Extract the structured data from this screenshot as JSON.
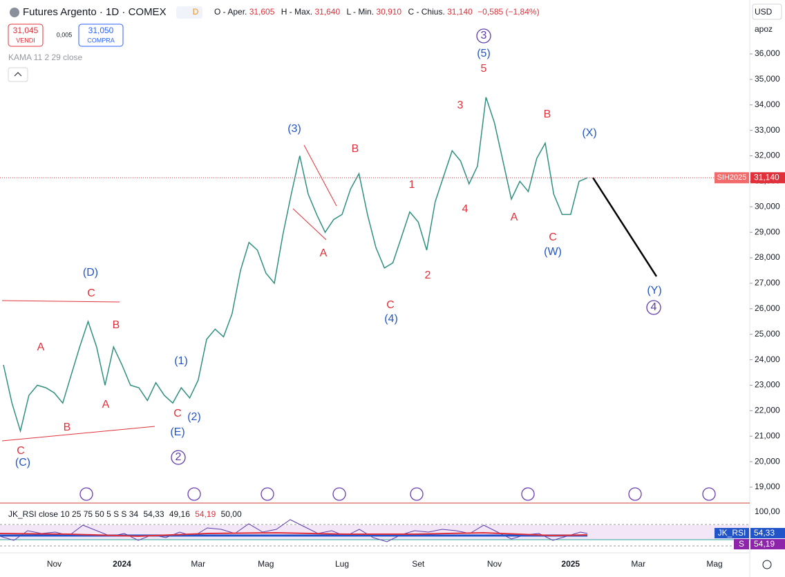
{
  "header": {
    "title": "Futures Argento · 1D · COMEX",
    "badge": "D",
    "open_label": "O - Aper.",
    "open": "31,605",
    "high_label": "H - Max.",
    "high": "31,640",
    "low_label": "L - Min.",
    "low": "30,910",
    "close_label": "C - Chius.",
    "close": "31,140",
    "change": "−0,585 (−1,84%)"
  },
  "trade": {
    "sell_price": "31,045",
    "sell_label": "VENDI",
    "spread": "0,005",
    "buy_price": "31,050",
    "buy_label": "COMPRA"
  },
  "indicator": "KAMA 11 2 29 close",
  "currency": "USD",
  "scale_mode": "apoz",
  "chart_data": {
    "type": "line",
    "color": "#2f8f7f",
    "categories": [
      null,
      null,
      null,
      null,
      null,
      null,
      "Nov",
      null,
      null,
      null,
      null,
      null,
      null,
      null,
      "2024",
      null,
      null,
      null,
      null,
      null,
      null,
      null,
      null,
      "Mar",
      null,
      null,
      null,
      null,
      null,
      null,
      null,
      "Mag",
      null,
      null,
      null,
      null,
      null,
      null,
      null,
      null,
      "Lug",
      null,
      null,
      null,
      null,
      null,
      null,
      null,
      null,
      "Set",
      null,
      null,
      null,
      null,
      null,
      null,
      null,
      null,
      "Nov",
      null,
      null,
      null,
      null,
      null,
      null,
      null,
      null,
      "2025",
      null,
      null,
      null,
      null,
      null,
      null,
      null,
      "Mar",
      null,
      null,
      null,
      null,
      null,
      null,
      null,
      null,
      "Mag",
      null,
      null,
      null,
      null
    ],
    "values": [
      23800,
      22300,
      21200,
      22600,
      23000,
      22900,
      22700,
      22300,
      23400,
      24500,
      25500,
      24500,
      23000,
      24500,
      23800,
      23000,
      22900,
      22400,
      23100,
      22600,
      22300,
      22900,
      22500,
      23200,
      24800,
      25200,
      24900,
      25800,
      27500,
      28600,
      28300,
      27400,
      27000,
      28900,
      30500,
      32000,
      30500,
      29700,
      29000,
      29500,
      29700,
      30700,
      31300,
      29700,
      28400,
      27600,
      27800,
      28800,
      29800,
      29400,
      28300,
      30200,
      31200,
      32200,
      31800,
      30900,
      31600,
      34300,
      33300,
      31800,
      30300,
      31000,
      30600,
      31900,
      32500,
      30500,
      29700,
      29700,
      31000,
      31140,
      null,
      null,
      null,
      null,
      null,
      null,
      null,
      null,
      null,
      null,
      null,
      null,
      null,
      null,
      null,
      null,
      null,
      null,
      null
    ],
    "ylim": [
      18376,
      38115
    ],
    "yticks": [
      {
        "value": 19000,
        "label": "19,000"
      },
      {
        "value": 20000,
        "label": "20,000"
      },
      {
        "value": 21000,
        "label": "21,000"
      },
      {
        "value": 22000,
        "label": "22,000"
      },
      {
        "value": 23000,
        "label": "23,000"
      },
      {
        "value": 24000,
        "label": "24,000"
      },
      {
        "value": 25000,
        "label": "25,000"
      },
      {
        "value": 26000,
        "label": "26,000"
      },
      {
        "value": 27000,
        "label": "27,000"
      },
      {
        "value": 28000,
        "label": "28,000"
      },
      {
        "value": 29000,
        "label": "29,000"
      },
      {
        "value": 30000,
        "label": "30,000"
      },
      {
        "value": 31000,
        "label": "31,000"
      },
      {
        "value": 32000,
        "label": "32,000"
      },
      {
        "value": 33000,
        "label": "33,000"
      },
      {
        "value": 34000,
        "label": "34,000"
      },
      {
        "value": 35000,
        "label": "35,000"
      },
      {
        "value": 36000,
        "label": "36,000"
      }
    ],
    "last_price": {
      "symbol": "SIH2025",
      "value": 31140,
      "label": "31,140"
    },
    "wave_labels": [
      {
        "text": "A",
        "color": "#e0303a"
      },
      {
        "text": "C",
        "color": "#e0303a"
      },
      {
        "text": "B",
        "color": "#e0303a"
      },
      {
        "text": "C",
        "color": "#e0303a"
      },
      {
        "text": "B",
        "color": "#e0303a"
      },
      {
        "text": "A",
        "color": "#e0303a"
      },
      {
        "text": "C",
        "color": "#e0303a"
      },
      {
        "text": "A",
        "color": "#e0303a"
      },
      {
        "text": "B",
        "color": "#e0303a"
      },
      {
        "text": "C",
        "color": "#e0303a"
      },
      {
        "text": "1",
        "color": "#e0303a"
      },
      {
        "text": "2",
        "color": "#e0303a"
      },
      {
        "text": "3",
        "color": "#e0303a"
      },
      {
        "text": "4",
        "color": "#e0303a"
      },
      {
        "text": "5",
        "color": "#e0303a"
      },
      {
        "text": "A",
        "color": "#e0303a"
      },
      {
        "text": "B",
        "color": "#e0303a"
      },
      {
        "text": "C",
        "color": "#e0303a"
      },
      {
        "text": "(C)",
        "color": "#2154c8"
      },
      {
        "text": "(D)",
        "color": "#2154c8"
      },
      {
        "text": "(E)",
        "color": "#2154c8"
      },
      {
        "text": "(1)",
        "color": "#2154c8"
      },
      {
        "text": "(2)",
        "color": "#2154c8"
      },
      {
        "text": "(3)",
        "color": "#2154c8"
      },
      {
        "text": "(4)",
        "color": "#2154c8"
      },
      {
        "text": "(5)",
        "color": "#2154c8"
      },
      {
        "text": "(W)",
        "color": "#2154c8"
      },
      {
        "text": "(X)",
        "color": "#2154c8"
      },
      {
        "text": "(Y)",
        "color": "#2154c8"
      },
      {
        "text": "3",
        "color": "#5b3aa8",
        "circled": true
      },
      {
        "text": "2",
        "color": "#5b3aa8",
        "circled": true
      },
      {
        "text": "4",
        "color": "#5b3aa8",
        "circled": true
      }
    ]
  },
  "rsi": {
    "legend": "JK_RSI close 10 25 75 50 5 S S 34",
    "v1": "54,33",
    "v2": "49,16",
    "v3": "54,19",
    "v4": "50,00",
    "top": "100,00",
    "tag": "JK_RSI",
    "tag_value": "54,33",
    "s_tag": "S",
    "s_value": "54,19"
  }
}
